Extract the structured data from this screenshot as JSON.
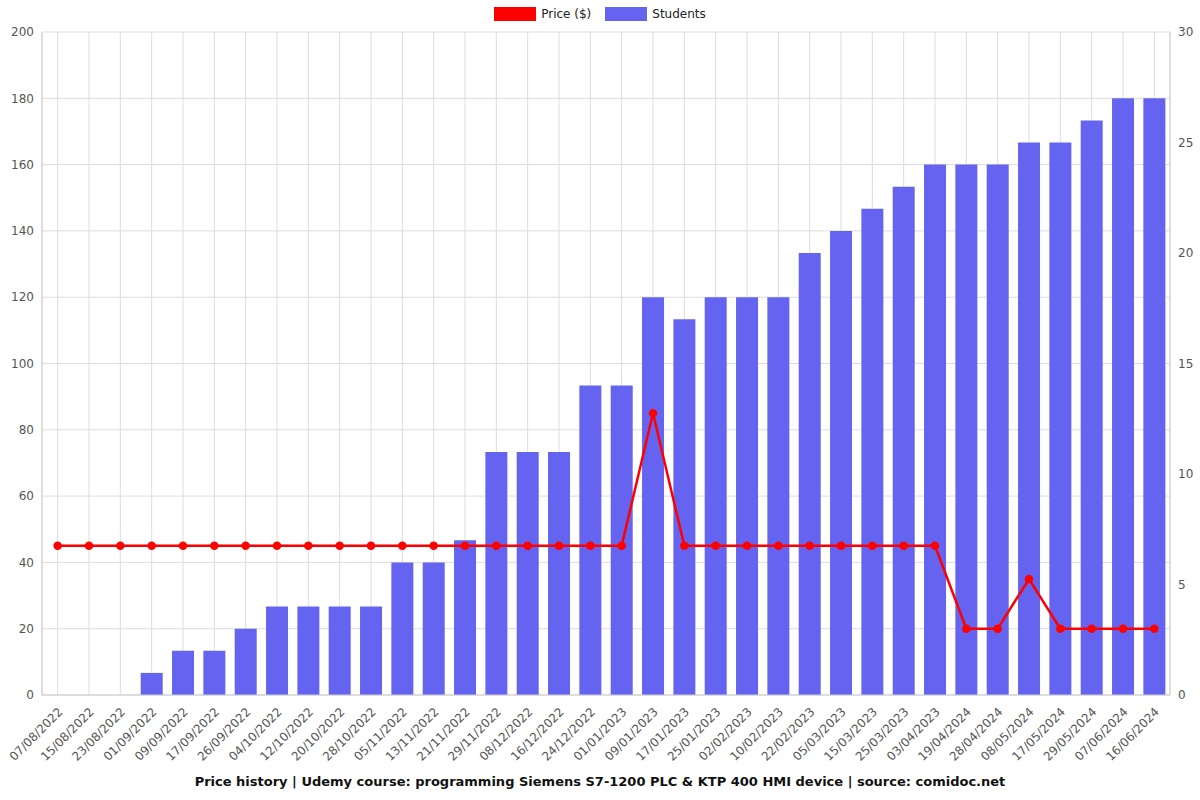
{
  "chart_data": {
    "type": "bar",
    "title": "Price history | Udemy course: programming Siemens S7-1200 PLC & KTP 400 HMI device | source: comidoc.net",
    "categories": [
      "07/08/2022",
      "15/08/2022",
      "23/08/2022",
      "01/09/2022",
      "09/09/2022",
      "17/09/2022",
      "26/09/2022",
      "04/10/2022",
      "12/10/2022",
      "20/10/2022",
      "28/10/2022",
      "05/11/2022",
      "13/11/2022",
      "21/11/2022",
      "29/11/2022",
      "08/12/2022",
      "16/12/2022",
      "24/12/2022",
      "01/01/2023",
      "09/01/2023",
      "17/01/2023",
      "25/01/2023",
      "02/02/2023",
      "10/02/2023",
      "22/02/2023",
      "05/03/2023",
      "15/03/2023",
      "25/03/2023",
      "03/04/2023",
      "19/04/2024",
      "28/04/2024",
      "08/05/2024",
      "17/05/2024",
      "29/05/2024",
      "07/06/2024",
      "16/06/2024"
    ],
    "series": [
      {
        "name": "Price ($)",
        "type": "line",
        "color": "#ff0000",
        "marker": "circle",
        "axis": "y",
        "values": [
          44.99,
          44.99,
          44.99,
          44.99,
          44.99,
          44.99,
          44.99,
          44.99,
          44.99,
          44.99,
          44.99,
          44.99,
          44.99,
          44.99,
          44.99,
          44.99,
          44.99,
          44.99,
          44.99,
          84.99,
          44.99,
          44.99,
          44.99,
          44.99,
          44.99,
          44.99,
          44.99,
          44.99,
          44.99,
          19.99,
          19.99,
          34.99,
          19.99,
          19.99,
          19.99,
          19.99
        ]
      },
      {
        "name": "Students",
        "type": "bar",
        "color": "#6464f0",
        "axis": "y2",
        "values": [
          0,
          0,
          0,
          1,
          2,
          2,
          3,
          4,
          4,
          4,
          4,
          6,
          6,
          7,
          11,
          11,
          11,
          14,
          14,
          18,
          17,
          18,
          18,
          18,
          20,
          21,
          22,
          23,
          24,
          24,
          24,
          25,
          25,
          26,
          27,
          27
        ]
      }
    ],
    "ylim": [
      0,
      200
    ],
    "yticks": [
      0,
      20,
      40,
      60,
      80,
      100,
      120,
      140,
      160,
      180,
      200
    ],
    "y2lim": [
      0,
      30
    ],
    "y2ticks": [
      0,
      5,
      10,
      15,
      20,
      25,
      30
    ],
    "grid": true,
    "legend": "top"
  }
}
